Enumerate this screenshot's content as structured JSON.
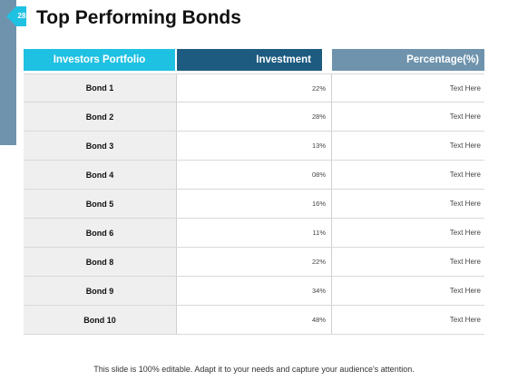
{
  "slide": {
    "number": "28",
    "title": "Top Performing Bonds",
    "footer": "This slide is 100% editable. Adapt it to your needs and capture your audience's attention."
  },
  "table": {
    "headers": [
      "Investors Portfolio",
      "Investment",
      "Percentage(%)"
    ],
    "rows": [
      {
        "name": "Bond 1",
        "investment": "22%",
        "percentage": "Text Here"
      },
      {
        "name": "Bond 2",
        "investment": "28%",
        "percentage": "Text Here"
      },
      {
        "name": "Bond 3",
        "investment": "13%",
        "percentage": "Text Here"
      },
      {
        "name": "Bond 4",
        "investment": "08%",
        "percentage": "Text Here"
      },
      {
        "name": "Bond 5",
        "investment": "16%",
        "percentage": "Text Here"
      },
      {
        "name": "Bond 6",
        "investment": "11%",
        "percentage": "Text Here"
      },
      {
        "name": "Bond 8",
        "investment": "22%",
        "percentage": "Text Here"
      },
      {
        "name": "Bond 9",
        "investment": "34%",
        "percentage": "Text Here"
      },
      {
        "name": "Bond 10",
        "investment": "48%",
        "percentage": "Text Here"
      }
    ]
  },
  "colors": {
    "header_cyan": "#1fc1e3",
    "header_navy": "#1d5b80",
    "header_steel": "#6f93ad",
    "row_label_bg": "#efefef"
  }
}
